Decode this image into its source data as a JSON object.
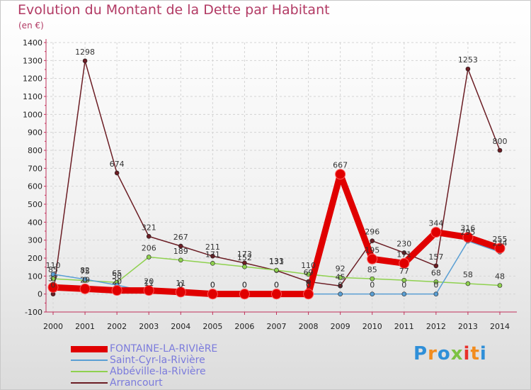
{
  "title": "Evolution du Montant de la Dette par Habitant",
  "unit_label": "(en €)",
  "logo_text": "Proxiti",
  "logo_letters": [
    "P",
    "r",
    "o",
    "x",
    "i",
    "t",
    "i"
  ],
  "logo_colors": [
    "#2f8fd8",
    "#f28c1e",
    "#2f8fd8",
    "#7dc242",
    "#e8302a",
    "#f28c1e",
    "#2f8fd8"
  ],
  "chart_data": {
    "type": "line",
    "title": "Evolution du Montant de la Dette par Habitant",
    "xlabel": "",
    "ylabel": "(en €)",
    "x": [
      "2000",
      "2001",
      "2002",
      "2003",
      "2004",
      "2005",
      "2006",
      "2007",
      "2008",
      "2009",
      "2010",
      "2011",
      "2012",
      "2013",
      "2014"
    ],
    "ylim": [
      -100,
      1400
    ],
    "yticks": [
      -100,
      0,
      100,
      200,
      300,
      400,
      500,
      600,
      700,
      800,
      900,
      1000,
      1100,
      1200,
      1300,
      1400
    ],
    "grid": true,
    "legend_position": "bottom-left",
    "series": [
      {
        "name": "FONTAINE-LA-RIVIèRE",
        "color": "#e00000",
        "values": [
          37,
          29,
          20,
          20,
          11,
          0,
          0,
          0,
          0,
          667,
          195,
          171,
          344,
          316,
          255
        ],
        "labels": [
          "37",
          "29",
          "20",
          "20",
          "11",
          "0",
          "0",
          "0",
          "0",
          "667",
          "195",
          "171",
          "344",
          "316",
          "255"
        ]
      },
      {
        "name": "Saint-Cyr-la-Rivière",
        "color": "#5a9fd4",
        "values": [
          110,
          82,
          50,
          11,
          0,
          0,
          0,
          0,
          0,
          0,
          0,
          0,
          0,
          295,
          234
        ],
        "labels": [
          "110",
          "82",
          "50",
          "11",
          "0",
          "0",
          "0",
          "0",
          "0",
          "0",
          "0",
          "0",
          "0",
          "295",
          "234"
        ]
      },
      {
        "name": "Abbéville-la-Rivière",
        "color": "#8fd14f",
        "values": [
          85,
          75,
          65,
          206,
          189,
          171,
          152,
          133,
          110,
          92,
          85,
          77,
          68,
          58,
          48
        ],
        "labels": [
          "85",
          "75",
          "65",
          "206",
          "189",
          "171",
          "152",
          "133",
          "110",
          "92",
          "85",
          "77",
          "68",
          "58",
          "48"
        ]
      },
      {
        "name": "Arrancourt",
        "color": "#6b1d24",
        "values": [
          0,
          1298,
          674,
          321,
          267,
          211,
          173,
          131,
          69,
          45,
          296,
          230,
          157,
          1253,
          800
        ],
        "labels": [
          "0",
          "1298",
          "674",
          "321",
          "267",
          "211",
          "173",
          "131",
          "69",
          "45",
          "296",
          "230",
          "157",
          "1253",
          "800"
        ]
      }
    ]
  }
}
